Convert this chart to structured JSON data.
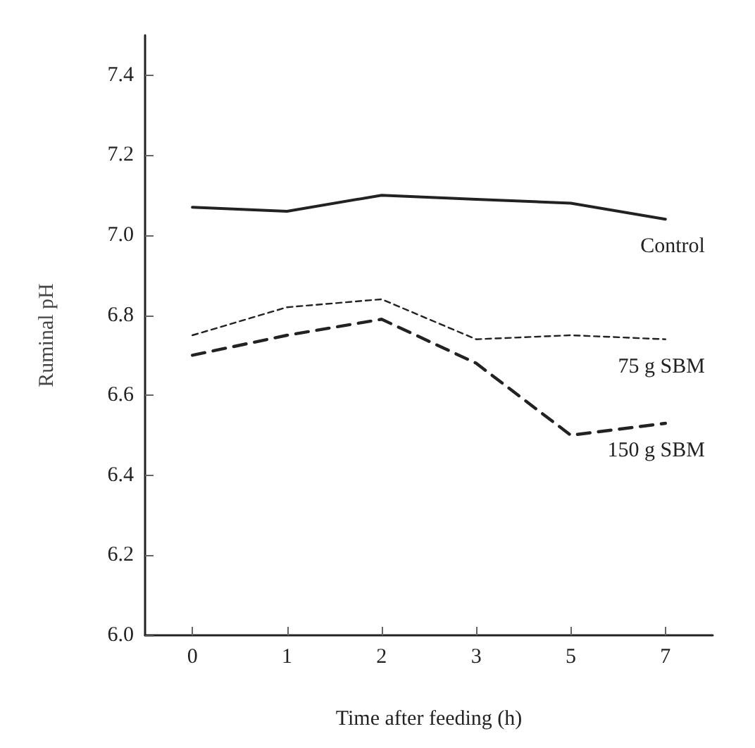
{
  "chart_data": {
    "type": "line",
    "xlabel": "Time after feeding (h)",
    "ylabel": "Ruminal pH",
    "categories": [
      "0",
      "1",
      "2",
      "3",
      "5",
      "7"
    ],
    "series": [
      {
        "name": "Control",
        "color": "#222222",
        "line_style": "solid",
        "values": [
          7.07,
          7.06,
          7.1,
          7.09,
          7.08,
          7.04
        ]
      },
      {
        "name": "75 g SBM",
        "color": "#222222",
        "line_style": "dotted",
        "values": [
          6.75,
          6.82,
          6.84,
          6.74,
          6.75,
          6.74
        ]
      },
      {
        "name": "150 g SBM",
        "color": "#222222",
        "line_style": "dashed",
        "values": [
          6.7,
          6.75,
          6.79,
          6.68,
          6.5,
          6.53
        ]
      }
    ],
    "ylim": [
      6.0,
      7.5
    ],
    "yticks": [
      {
        "value": 6,
        "label": "6.0"
      },
      6.2,
      6.4,
      6.6,
      6.8,
      {
        "value": 7,
        "label": "7.0"
      },
      7.2,
      7.4
    ],
    "grid": false,
    "legend": false,
    "marker": "none"
  }
}
